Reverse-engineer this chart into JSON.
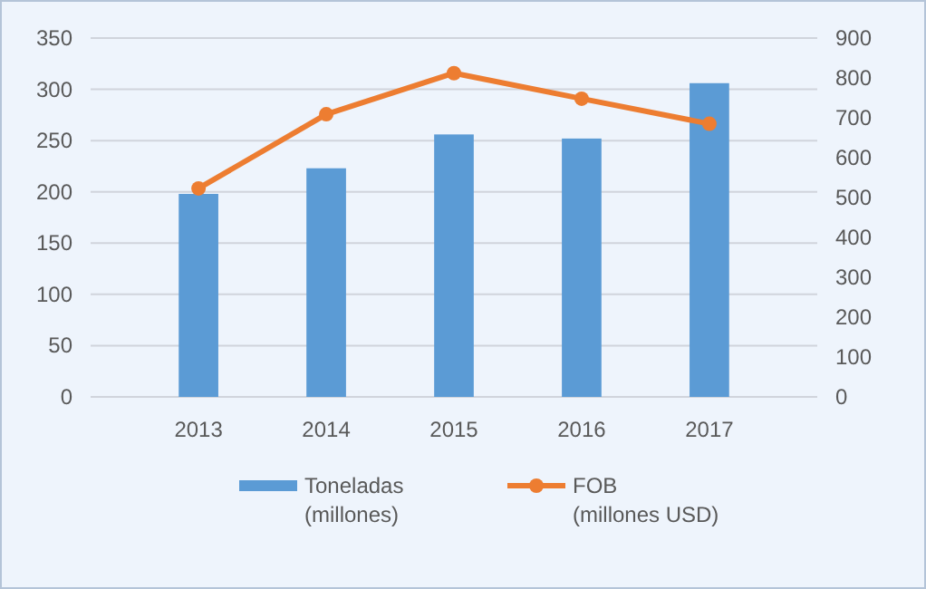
{
  "chart_data": {
    "type": "bar",
    "categories": [
      "2013",
      "2014",
      "2015",
      "2016",
      "2017"
    ],
    "series": [
      {
        "name": "Toneladas\n(millones)",
        "color": "#5b9bd5",
        "values": [
          198,
          223,
          256,
          252,
          306
        ]
      },
      {
        "name": "FOB\n(millones USD)",
        "color": "#ed7d31",
        "type": "line",
        "axis": "y2",
        "marker": "circle",
        "values": [
          523,
          709,
          812,
          748,
          685
        ]
      }
    ],
    "ylim": [
      0,
      350
    ],
    "yticks": [
      0,
      50,
      100,
      150,
      200,
      250,
      300,
      350
    ],
    "y2lim": [
      0,
      900
    ],
    "y2ticks": [
      0,
      100,
      200,
      300,
      400,
      500,
      600,
      700,
      800,
      900
    ],
    "grid": "y",
    "legend": "bottom"
  }
}
